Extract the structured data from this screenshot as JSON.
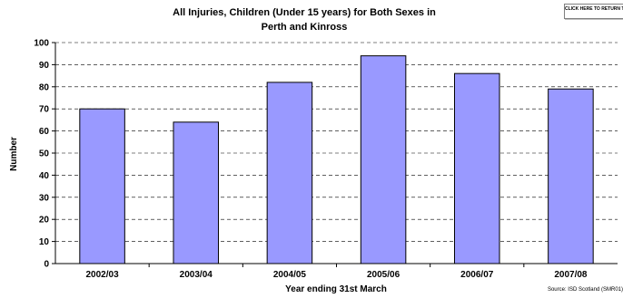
{
  "return_button": {
    "label": "CLICK HERE TO RETURN TO MAIN MENU"
  },
  "source": "Source: ISD Scotland (SMR01)",
  "chart_data": {
    "type": "bar",
    "title_line1": "All Injuries, Children (Under 15 years) for Both Sexes in",
    "title_line2": "Perth and Kinross",
    "xlabel": "Year ending 31st March",
    "ylabel": "Number",
    "categories": [
      "2002/03",
      "2003/04",
      "2004/05",
      "2005/06",
      "2006/07",
      "2007/08"
    ],
    "values": [
      70,
      64,
      82,
      94,
      86,
      79
    ],
    "ylim": [
      0,
      100
    ],
    "yticks": [
      0,
      10,
      20,
      30,
      40,
      50,
      60,
      70,
      80,
      90,
      100
    ],
    "grid": true,
    "legend": "none",
    "bar_color": "#9999ff",
    "bar_edge_color": "#000000"
  }
}
